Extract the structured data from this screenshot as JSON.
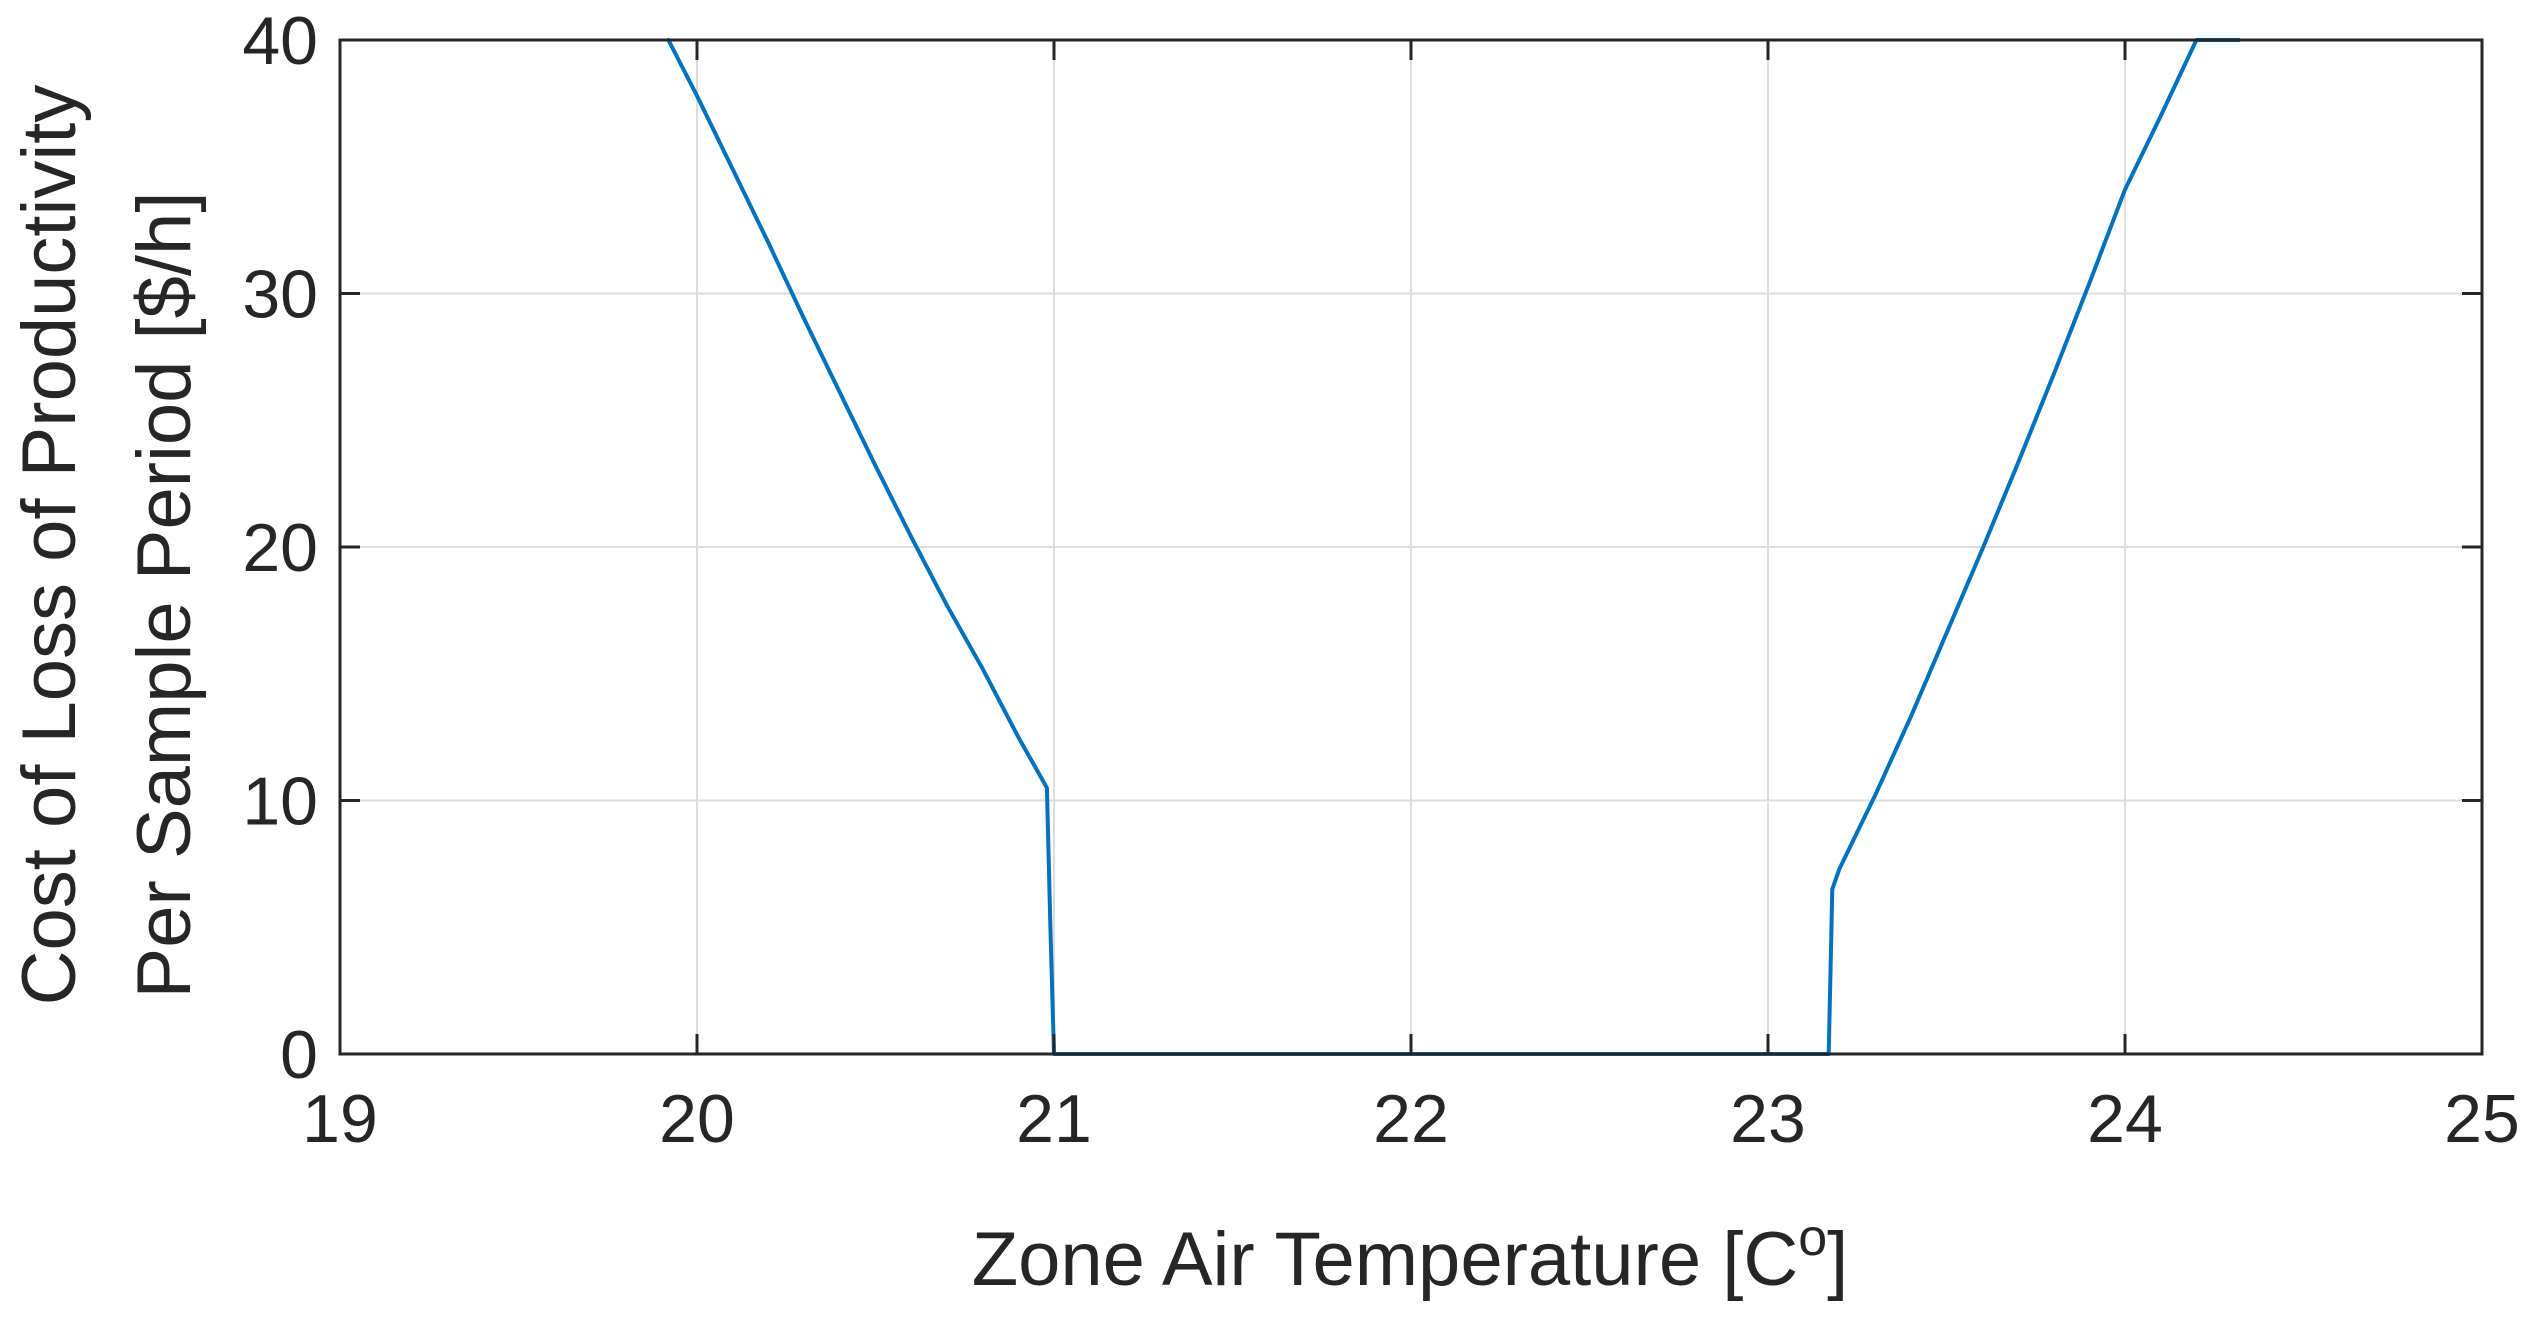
{
  "chart_data": {
    "type": "line",
    "title": "",
    "xlabel": "Zone Air Temperature [C",
    "xlabel_sup": "o",
    "xlabel_suffix": "]",
    "ylabel_line1": "Cost of Loss of Productivity",
    "ylabel_line2": "Per Sample Period [$/h]",
    "xlim": [
      19,
      25
    ],
    "ylim": [
      0,
      40
    ],
    "xticks": [
      19,
      20,
      21,
      22,
      23,
      24,
      25
    ],
    "yticks": [
      0,
      10,
      20,
      30,
      40
    ],
    "xtick_labels": [
      "19",
      "20",
      "21",
      "22",
      "23",
      "24",
      "25"
    ],
    "ytick_labels": [
      "0",
      "10",
      "20",
      "30",
      "40"
    ],
    "grid": true,
    "line_color": "#0072BD",
    "series": [
      {
        "x": [
          19.92,
          20.0,
          20.1,
          20.2,
          20.3,
          20.4,
          20.5,
          20.6,
          20.7,
          20.8,
          20.9,
          20.98,
          20.99,
          21.0,
          21.5,
          22.0,
          22.5,
          23.0,
          23.17,
          23.18,
          23.2,
          23.3,
          23.4,
          23.5,
          23.6,
          23.7,
          23.8,
          23.9,
          24.0,
          24.1,
          24.2,
          24.32
        ],
        "y": [
          40.0,
          37.8,
          34.9,
          32.0,
          29.0,
          26.1,
          23.2,
          20.4,
          17.7,
          15.2,
          12.5,
          10.5,
          5.0,
          0.0,
          0.0,
          0.0,
          0.0,
          0.0,
          0.0,
          6.5,
          7.3,
          10.2,
          13.3,
          16.6,
          19.9,
          23.3,
          26.8,
          30.4,
          34.1,
          37.0,
          40.0,
          40.0
        ]
      }
    ]
  }
}
